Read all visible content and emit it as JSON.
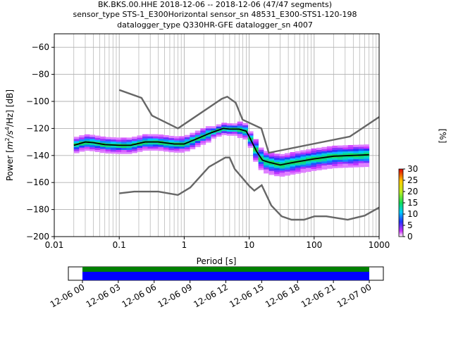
{
  "title_lines": [
    "BK.BKS.00.HHE   2018-12-06 -- 2018-12-06  (47/47 segments)",
    "sensor_type STS-1_E300Horizontal sensor_sn 48531_E300-STS1-120-198",
    "datalogger_type Q330HR-GFE datalogger_sn 4007"
  ],
  "chart_data": {
    "type": "heatmap",
    "x_scale": "log",
    "xlim": [
      0.01,
      1000
    ],
    "ylim": [
      -200,
      -50
    ],
    "x_ticks": [
      "0.01",
      "0.1",
      "1",
      "10",
      "100",
      "1000"
    ],
    "y_ticks": [
      "−60",
      "−80",
      "−100",
      "−120",
      "−140",
      "−160",
      "−180",
      "−200"
    ],
    "xlabel": "Period [s]",
    "ylabel_parts": [
      "Power [",
      "m",
      "2",
      "/s",
      "4",
      "/Hz] [dB]"
    ],
    "grid": true,
    "noise_model_upper": {
      "x": [
        0.1,
        0.22,
        0.32,
        0.8,
        3.8,
        4.6,
        6.2,
        7.9,
        15.4,
        20,
        354.8,
        1000
      ],
      "y": [
        -91.5,
        -97.4,
        -110.5,
        -120,
        -98,
        -96.5,
        -101,
        -113.5,
        -120,
        -138,
        -126,
        -111.5
      ]
    },
    "noise_model_lower": {
      "x": [
        0.1,
        0.17,
        0.4,
        0.8,
        1.24,
        2.4,
        4.3,
        5,
        6,
        10,
        12,
        15.6,
        21.9,
        31.6,
        45,
        70,
        101,
        154,
        328,
        600,
        1000
      ],
      "y": [
        -168,
        -166.7,
        -166.7,
        -169.2,
        -163.7,
        -148.5,
        -141.5,
        -141.5,
        -150,
        -162.5,
        -166,
        -162,
        -177,
        -185,
        -187.5,
        -187.5,
        -185,
        -185,
        -187.5,
        -184.5,
        -178.5
      ]
    },
    "median_curve": {
      "x": [
        0.02,
        0.03,
        0.04,
        0.06,
        0.1,
        0.15,
        0.25,
        0.4,
        0.7,
        1,
        1.5,
        2.5,
        4,
        5,
        7,
        9,
        10,
        13,
        16,
        20,
        30,
        50,
        100,
        200,
        700
      ],
      "y": [
        -132.5,
        -130,
        -130.5,
        -132,
        -132.5,
        -132.5,
        -130,
        -130,
        -131.5,
        -131.5,
        -128,
        -123.5,
        -120,
        -120.5,
        -120.5,
        -122,
        -126,
        -137,
        -143.5,
        -145,
        -147,
        -145,
        -142.5,
        -140.5,
        -139.5
      ]
    },
    "colorbar": {
      "label": "[%]",
      "range": [
        0,
        30
      ],
      "ticks": [
        "0",
        "5",
        "10",
        "15",
        "20",
        "25",
        "30"
      ]
    },
    "timeline": {
      "ticks": [
        "12-06 00",
        "12-06 03",
        "12-06 06",
        "12-06 09",
        "12-06 12",
        "12-06 15",
        "12-06 18",
        "12-06 21",
        "12-07 00"
      ]
    }
  }
}
